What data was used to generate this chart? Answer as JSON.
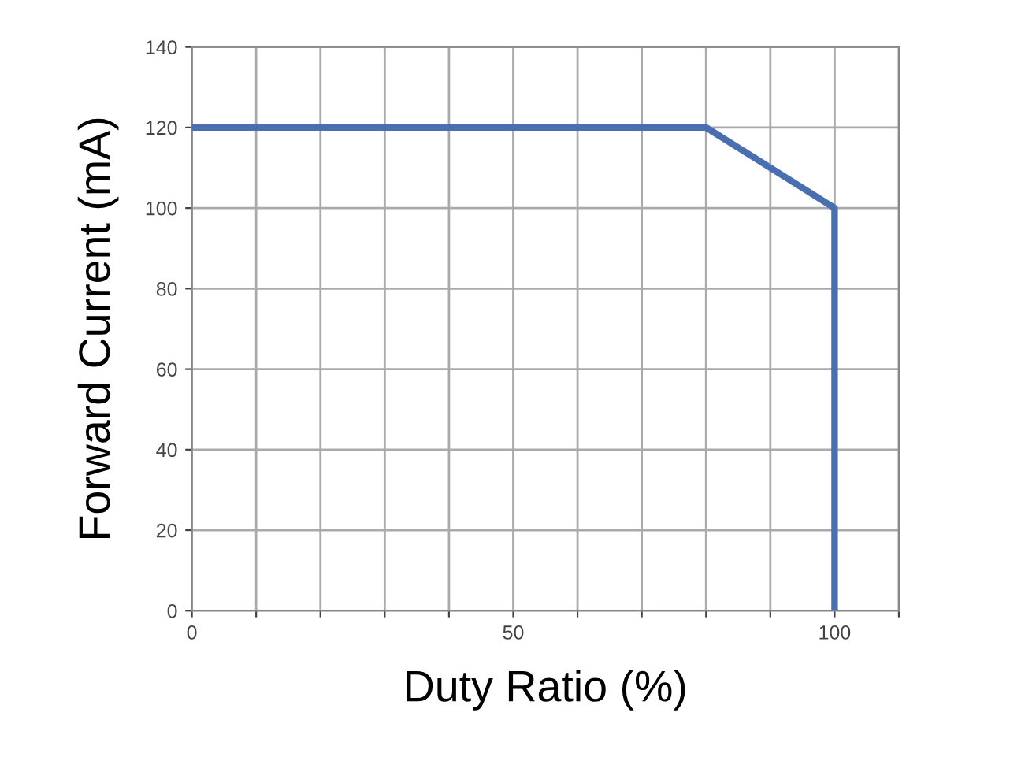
{
  "chart_data": {
    "type": "line",
    "xlabel": "Duty Ratio (%)",
    "ylabel": "Forward Current (mA)",
    "x": [
      0,
      80,
      100,
      100
    ],
    "series": [
      {
        "color": "#4a6fb0",
        "values": [
          120,
          120,
          100,
          0
        ]
      }
    ],
    "xlim": [
      0,
      110
    ],
    "ylim": [
      0,
      140
    ],
    "xticks": [
      0,
      {
        "value": 10,
        "label": null
      },
      {
        "value": 20,
        "label": null
      },
      {
        "value": 30,
        "label": null
      },
      {
        "value": 40,
        "label": null
      },
      50,
      {
        "value": 60,
        "label": null
      },
      {
        "value": 70,
        "label": null
      },
      {
        "value": 80,
        "label": null
      },
      {
        "value": 90,
        "label": null
      },
      100,
      {
        "value": 110,
        "label": null
      }
    ],
    "yticks": [
      0,
      20,
      40,
      60,
      80,
      100,
      120,
      140
    ],
    "grid": true,
    "marker": "none",
    "line_style": "solid"
  }
}
